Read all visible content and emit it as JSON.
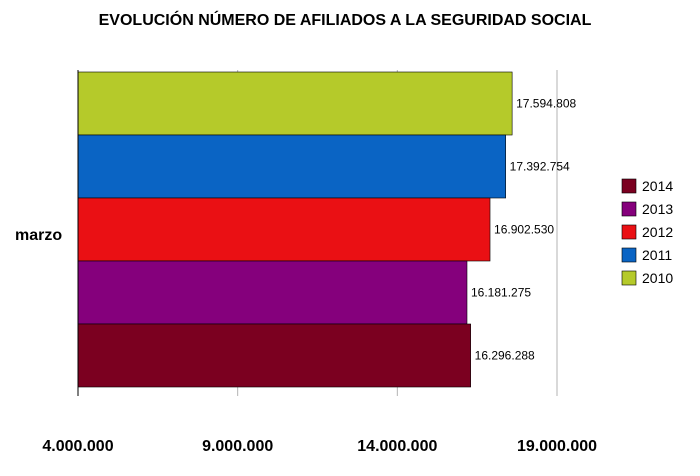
{
  "chart_data": {
    "type": "bar",
    "orientation": "horizontal",
    "title": "EVOLUCIÓN NÚMERO DE AFILIADOS A LA SEGURIDAD SOCIAL",
    "categories": [
      "marzo"
    ],
    "xlim": [
      4000000,
      19000000
    ],
    "x_ticks": [
      4000000,
      9000000,
      14000000,
      19000000
    ],
    "x_tick_labels": [
      "4.000.000",
      "9.000.000",
      "14.000.000",
      "19.000.000"
    ],
    "grid": true,
    "legend_position": "right",
    "series": [
      {
        "name": "2010",
        "values": [
          17594808
        ],
        "label": "17.594.808",
        "color": "#b5ca2a"
      },
      {
        "name": "2011",
        "values": [
          17392754
        ],
        "label": "17.392.754",
        "color": "#0a64c4"
      },
      {
        "name": "2012",
        "values": [
          16902530
        ],
        "label": "16.902.530",
        "color": "#ea1014"
      },
      {
        "name": "2013",
        "values": [
          16181275
        ],
        "label": "16.181.275",
        "color": "#85007c"
      },
      {
        "name": "2014",
        "values": [
          16296288
        ],
        "label": "16.296.288",
        "color": "#7b0020"
      }
    ],
    "legend_order": [
      "2014",
      "2013",
      "2012",
      "2011",
      "2010"
    ]
  }
}
